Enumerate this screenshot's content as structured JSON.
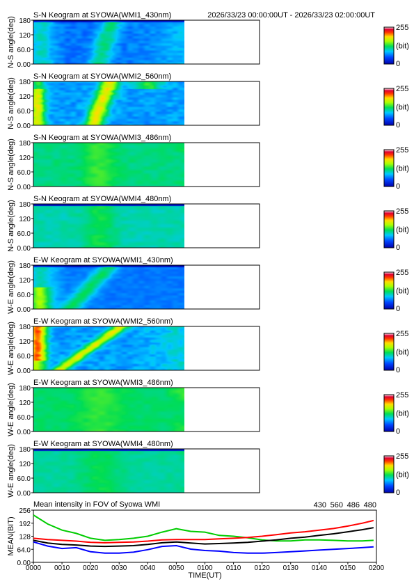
{
  "header": {
    "time_range": "2026/33/23 00:00:00UT - 2026/33/23 02:00:00UT"
  },
  "colors": {
    "series_430": "#0000ff",
    "series_560": "#00cc00",
    "series_486": "#ff0000",
    "series_480": "#000000",
    "keogram_low": "#0000aa",
    "keogram_high": "#ffffff"
  },
  "chart_data": [
    {
      "type": "heatmap",
      "title": "S-N Keogram at SYOWA(WMI1_430nm)",
      "ylabel": "N-S angle(deg)",
      "yticks": [
        "180",
        "120",
        "60.0",
        "0.00"
      ],
      "ylim": [
        0,
        180
      ],
      "colorbar": {
        "max_label": "255",
        "unit_label": "(bit)",
        "min_label": "0",
        "range": [
          0,
          255
        ]
      },
      "data_extent_ut": [
        "0000",
        "0120"
      ]
    },
    {
      "type": "heatmap",
      "title": "S-N Keogram at SYOWA(WMI2_560nm)",
      "ylabel": "N-S angle(deg)",
      "yticks": [
        "180",
        "120",
        "60.0",
        "0.00"
      ],
      "ylim": [
        0,
        180
      ],
      "colorbar": {
        "max_label": "255",
        "unit_label": "(bit)",
        "min_label": "0",
        "range": [
          0,
          255
        ]
      },
      "data_extent_ut": [
        "0000",
        "0120"
      ]
    },
    {
      "type": "heatmap",
      "title": "S-N Keogram at SYOWA(WMI3_486nm)",
      "ylabel": "N-S angle(deg)",
      "yticks": [
        "180",
        "120",
        "60.0",
        "0.00"
      ],
      "ylim": [
        0,
        180
      ],
      "colorbar": {
        "max_label": "255",
        "unit_label": "(bit)",
        "min_label": "0",
        "range": [
          0,
          255
        ]
      },
      "data_extent_ut": [
        "0000",
        "0120"
      ]
    },
    {
      "type": "heatmap",
      "title": "S-N Keogram at SYOWA(WMI4_480nm)",
      "ylabel": "N-S angle(deg)",
      "yticks": [
        "180",
        "120",
        "60.0",
        "0.00"
      ],
      "ylim": [
        0,
        180
      ],
      "colorbar": {
        "max_label": "255",
        "unit_label": "(bit)",
        "min_label": "0",
        "range": [
          0,
          255
        ]
      },
      "data_extent_ut": [
        "0000",
        "0120"
      ]
    },
    {
      "type": "heatmap",
      "title": "E-W Keogram at SYOWA(WMI1_430nm)",
      "ylabel": "W-E angle(deg)",
      "yticks": [
        "180",
        "120",
        "60.0",
        "0.00"
      ],
      "ylim": [
        0,
        180
      ],
      "colorbar": {
        "max_label": "255",
        "unit_label": "(bit)",
        "min_label": "0",
        "range": [
          0,
          255
        ]
      },
      "data_extent_ut": [
        "0000",
        "0120"
      ]
    },
    {
      "type": "heatmap",
      "title": "E-W Keogram at SYOWA(WMI2_560nm)",
      "ylabel": "W-E angle(deg)",
      "yticks": [
        "180",
        "120",
        "60.0",
        "0.00"
      ],
      "ylim": [
        0,
        180
      ],
      "colorbar": {
        "max_label": "255",
        "unit_label": "(bit)",
        "min_label": "0",
        "range": [
          0,
          255
        ]
      },
      "data_extent_ut": [
        "0000",
        "0120"
      ]
    },
    {
      "type": "heatmap",
      "title": "E-W Keogram at SYOWA(WMI3_486nm)",
      "ylabel": "W-E angle(deg)",
      "yticks": [
        "180",
        "120",
        "60.0",
        "0.00"
      ],
      "ylim": [
        0,
        180
      ],
      "colorbar": {
        "max_label": "255",
        "unit_label": "(bit)",
        "min_label": "0",
        "range": [
          0,
          255
        ]
      },
      "data_extent_ut": [
        "0000",
        "0120"
      ]
    },
    {
      "type": "heatmap",
      "title": "E-W Keogram at SYOWA(WMI4_480nm)",
      "ylabel": "W-E angle(deg)",
      "yticks": [
        "180",
        "120",
        "60.0",
        "0.00"
      ],
      "ylim": [
        0,
        180
      ],
      "colorbar": {
        "max_label": "255",
        "unit_label": "(bit)",
        "min_label": "0",
        "range": [
          0,
          255
        ]
      },
      "data_extent_ut": [
        "0000",
        "0120"
      ]
    },
    {
      "type": "line",
      "title": "Mean intensity in FOV of Syowa WMI",
      "ylabel": "MEAN(BIT)",
      "xlabel": "TIME(UT)",
      "xticks": [
        "0000",
        "0010",
        "0020",
        "0030",
        "0040",
        "0050",
        "0100",
        "0110",
        "0120",
        "0130",
        "0140",
        "0150",
        "0200"
      ],
      "yticks": [
        "256",
        "192",
        "128",
        "64.0",
        "0.00"
      ],
      "ylim": [
        0,
        256
      ],
      "xlim_min": [
        0,
        120
      ],
      "x_min": [
        0,
        5,
        10,
        15,
        20,
        25,
        30,
        35,
        40,
        45,
        50,
        55,
        60,
        65,
        70,
        75,
        80,
        85,
        90,
        95,
        100,
        105,
        110,
        115,
        119
      ],
      "series": [
        {
          "name": "430",
          "color": "#0000ff",
          "values": [
            100,
            80,
            68,
            72,
            52,
            45,
            45,
            50,
            62,
            78,
            82,
            65,
            58,
            55,
            48,
            45,
            45,
            48,
            52,
            56,
            60,
            64,
            68,
            72,
            76
          ]
        },
        {
          "name": "560",
          "color": "#00cc00",
          "values": [
            232,
            188,
            158,
            142,
            118,
            108,
            112,
            118,
            128,
            148,
            165,
            152,
            148,
            132,
            128,
            120,
            110,
            105,
            105,
            110,
            110,
            108,
            105,
            105,
            108
          ]
        },
        {
          "name": "486",
          "color": "#ff0000",
          "values": [
            118,
            112,
            108,
            104,
            98,
            96,
            98,
            100,
            104,
            110,
            112,
            112,
            112,
            115,
            118,
            122,
            128,
            136,
            144,
            150,
            158,
            166,
            178,
            192,
            205
          ]
        },
        {
          "name": "480",
          "color": "#000000",
          "values": [
            108,
            95,
            88,
            85,
            80,
            78,
            80,
            82,
            88,
            96,
            100,
            95,
            90,
            92,
            95,
            98,
            104,
            110,
            118,
            124,
            132,
            140,
            150,
            160,
            170
          ]
        }
      ]
    }
  ]
}
